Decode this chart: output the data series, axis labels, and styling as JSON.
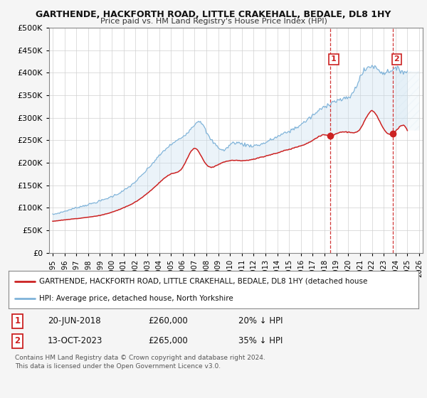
{
  "title": "GARTHENDE, HACKFORTH ROAD, LITTLE CRAKEHALL, BEDALE, DL8 1HY",
  "subtitle": "Price paid vs. HM Land Registry's House Price Index (HPI)",
  "hpi_color": "#7fb3d9",
  "hpi_fill_color": "#c8dff0",
  "price_color": "#cc2222",
  "marker_color": "#cc2222",
  "vline_color": "#cc2222",
  "grid_color": "#d0d0d0",
  "bg_color": "#f5f5f5",
  "plot_bg": "#ffffff",
  "ylim": [
    0,
    500000
  ],
  "yticks": [
    0,
    50000,
    100000,
    150000,
    200000,
    250000,
    300000,
    350000,
    400000,
    450000,
    500000
  ],
  "ytick_labels": [
    "£0",
    "£50K",
    "£100K",
    "£150K",
    "£200K",
    "£250K",
    "£300K",
    "£350K",
    "£400K",
    "£450K",
    "£500K"
  ],
  "xmin": 1994.7,
  "xmax": 2026.3,
  "sale1_year": 2018.47,
  "sale1_price": 260000,
  "sale2_year": 2023.79,
  "sale2_price": 265000,
  "legend_line1": "GARTHENDE, HACKFORTH ROAD, LITTLE CRAKEHALL, BEDALE, DL8 1HY (detached house",
  "legend_line2": "HPI: Average price, detached house, North Yorkshire",
  "table_row1": [
    "1",
    "20-JUN-2018",
    "£260,000",
    "20% ↓ HPI"
  ],
  "table_row2": [
    "2",
    "13-OCT-2023",
    "£265,000",
    "35% ↓ HPI"
  ],
  "footnote": "Contains HM Land Registry data © Crown copyright and database right 2024.\nThis data is licensed under the Open Government Licence v3.0."
}
